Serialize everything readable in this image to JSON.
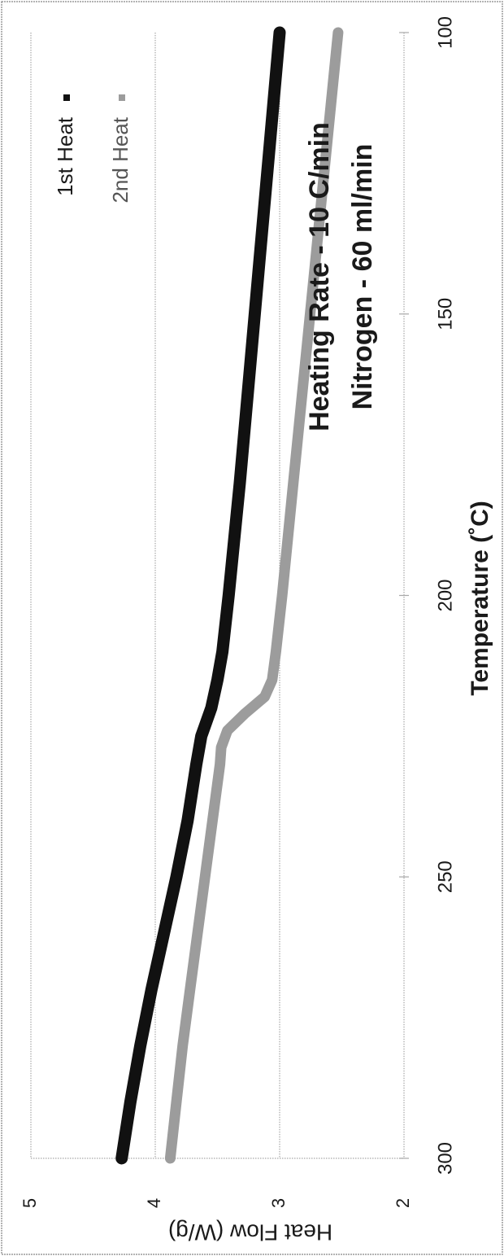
{
  "colors": {
    "background": "#ffffff",
    "border": "#9a9a9a",
    "gridline": "#a8a8a8",
    "text": "#1a1a1a",
    "series_1": "#111111",
    "series_2": "#9c9c9c"
  },
  "chart_data": {
    "type": "line",
    "title": "",
    "xlabel": "Temperature (˚C)",
    "ylabel": "Heat Flow (W/g)",
    "xlim": [
      100,
      300
    ],
    "ylim": [
      2,
      5
    ],
    "x_ticks": [
      100,
      150,
      200,
      250,
      300
    ],
    "y_ticks": [
      2,
      3,
      4,
      5
    ],
    "grid": true,
    "legend_position": "top-left",
    "orientation": "rotated 90° counterclockwise",
    "annotations": [
      "Heating Rate - 10 C/min",
      "Nitrogen - 60 ml/min"
    ],
    "series": [
      {
        "name": "1st Heat",
        "x": [
          100,
          120,
          140,
          160,
          180,
          200,
          210,
          215,
          220,
          225,
          230,
          240,
          250,
          260,
          270,
          280,
          290,
          300
        ],
        "y": [
          3.0,
          3.08,
          3.16,
          3.24,
          3.32,
          3.41,
          3.46,
          3.5,
          3.55,
          3.63,
          3.67,
          3.74,
          3.83,
          3.93,
          4.03,
          4.12,
          4.2,
          4.27
        ]
      },
      {
        "name": "2nd Heat",
        "x": [
          100,
          120,
          140,
          160,
          180,
          200,
          210,
          215,
          218,
          221,
          224,
          227,
          230,
          240,
          250,
          260,
          270,
          280,
          290,
          300
        ],
        "y": [
          2.53,
          2.62,
          2.71,
          2.8,
          2.89,
          2.98,
          3.03,
          3.06,
          3.12,
          3.28,
          3.42,
          3.47,
          3.48,
          3.54,
          3.6,
          3.66,
          3.72,
          3.78,
          3.83,
          3.88
        ]
      }
    ]
  }
}
